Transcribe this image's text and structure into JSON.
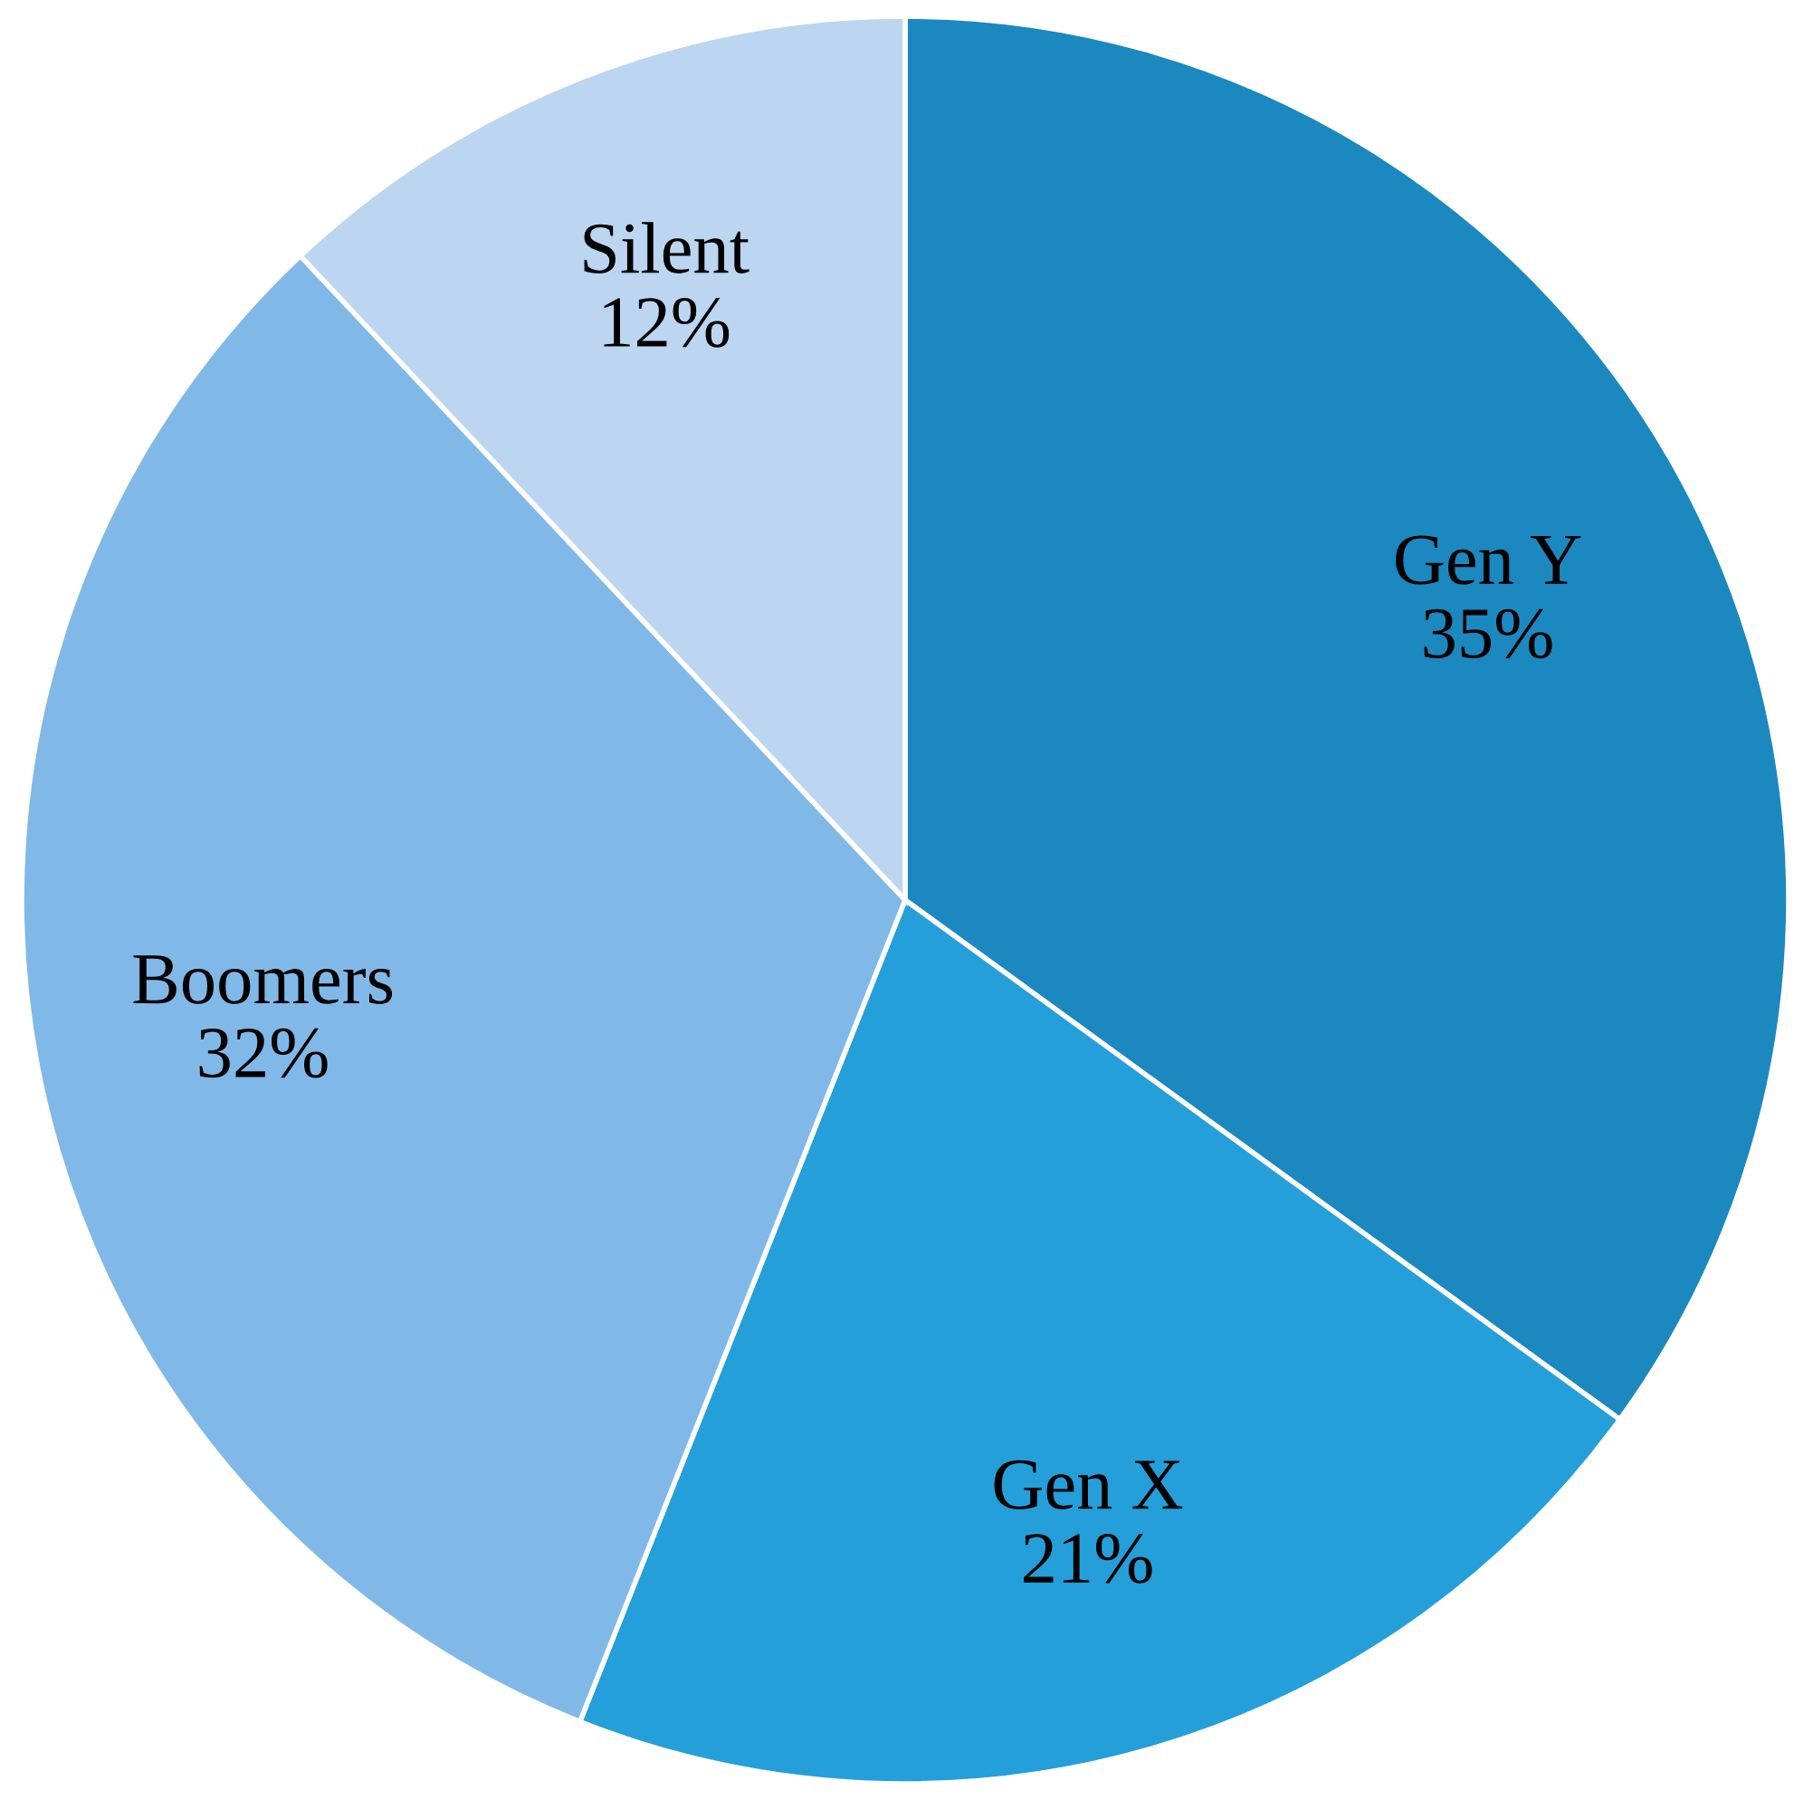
{
  "chart_data": {
    "type": "pie",
    "categories": [
      "Gen Y",
      "Gen X",
      "Boomers",
      "Silent"
    ],
    "values": [
      35,
      21,
      32,
      12
    ],
    "value_labels": [
      "35%",
      "21%",
      "32%",
      "12%"
    ],
    "colors": [
      "#1b88c0",
      "#249fda",
      "#80b9e8",
      "#bcd5f1"
    ]
  }
}
